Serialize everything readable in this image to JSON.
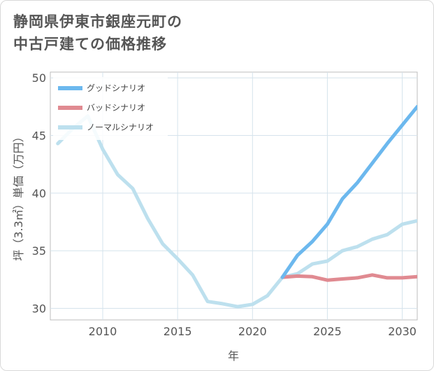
{
  "title": {
    "line1": "静岡県伊東市銀座元町の",
    "line2": "中古戸建ての価格推移"
  },
  "colors": {
    "good": "#6cb8ee",
    "bad": "#e08a91",
    "normal": "#bde0ee",
    "grid": "#d5e3ec",
    "frame": "#bcbcbc"
  },
  "chart_data": {
    "type": "line",
    "xlabel": "年",
    "ylabel": "坪（3.3㎡）単価（万円）",
    "xlim": [
      2006.5,
      2031
    ],
    "ylim": [
      29,
      50.5
    ],
    "xticks": [
      2010,
      2015,
      2020,
      2025,
      2030
    ],
    "yticks": [
      30,
      35,
      40,
      45,
      50
    ],
    "grid": true,
    "legend_position": "top-left",
    "series": [
      {
        "name": "グッドシナリオ",
        "color_key": "good",
        "x": [
          2022,
          2023,
          2024,
          2025,
          2026,
          2027,
          2028,
          2029,
          2030,
          2031
        ],
        "y": [
          32.7,
          34.6,
          35.8,
          37.3,
          39.5,
          40.9,
          42.6,
          44.3,
          45.9,
          47.5
        ]
      },
      {
        "name": "バッドシナリオ",
        "color_key": "bad",
        "x": [
          2022,
          2023,
          2024,
          2025,
          2026,
          2027,
          2028,
          2029,
          2030,
          2031
        ],
        "y": [
          32.7,
          32.8,
          32.75,
          32.45,
          32.55,
          32.65,
          32.9,
          32.65,
          32.65,
          32.75
        ]
      },
      {
        "name": "ノーマルシナリオ",
        "color_key": "normal",
        "x": [
          2007,
          2008,
          2009,
          2010,
          2011,
          2012,
          2013,
          2014,
          2015,
          2016,
          2017,
          2018,
          2019,
          2020,
          2021,
          2022,
          2023,
          2024,
          2025,
          2026,
          2027,
          2028,
          2029,
          2030,
          2031
        ],
        "y": [
          44.3,
          45.6,
          46.7,
          43.8,
          41.6,
          40.4,
          37.8,
          35.6,
          34.3,
          32.9,
          30.6,
          30.4,
          30.15,
          30.35,
          31.1,
          32.7,
          33.0,
          33.85,
          34.1,
          35.0,
          35.35,
          36.0,
          36.4,
          37.3,
          37.6
        ]
      }
    ]
  }
}
